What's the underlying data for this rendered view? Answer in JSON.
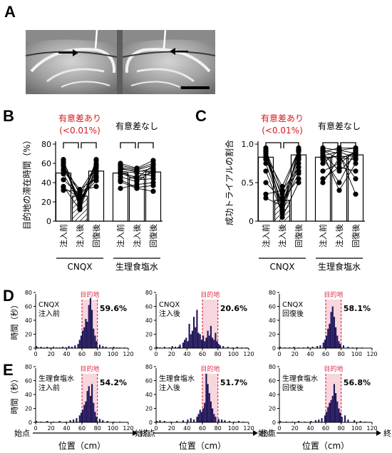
{
  "panel_letters": {
    "a": "A",
    "b": "B",
    "c": "C",
    "d": "D",
    "e": "E"
  },
  "colors": {
    "significant": "#d7191c",
    "histogram": "#241a5c",
    "target_zone": "#f7d6de",
    "target_line": "#e0304a"
  },
  "chart_data": [
    {
      "panel": "B",
      "type": "bar",
      "ylabel": "目的地の滞在時間（%）",
      "ylim": [
        0,
        80
      ],
      "yticks": [
        0,
        20,
        40,
        60,
        80
      ],
      "categories": [
        "注入前",
        "注入後",
        "回復後",
        "注入前",
        "注入後",
        "回復後"
      ],
      "groups": [
        "CNQX",
        "生理食塩水"
      ],
      "values": [
        50,
        26,
        52,
        50,
        45,
        51
      ],
      "significance_labels": [
        "有意差あり",
        "(<0.01%)",
        "有意差なし"
      ],
      "individual_cnqx": [
        [
          64,
          14,
          63
        ],
        [
          63,
          17,
          60
        ],
        [
          61,
          28,
          55
        ],
        [
          60,
          15,
          64
        ],
        [
          58,
          22,
          52
        ],
        [
          57,
          21,
          50
        ],
        [
          54,
          33,
          45
        ],
        [
          52,
          31,
          58
        ],
        [
          49,
          19,
          47
        ],
        [
          43,
          27,
          46
        ],
        [
          36,
          12,
          57
        ],
        [
          35,
          24,
          42
        ],
        [
          32,
          31,
          36
        ]
      ],
      "individual_saline": [
        [
          60,
          55,
          63
        ],
        [
          58,
          54,
          60
        ],
        [
          56,
          53,
          58
        ],
        [
          55,
          51,
          55
        ],
        [
          54,
          52,
          52
        ],
        [
          52,
          50,
          47
        ],
        [
          51,
          45,
          58
        ],
        [
          50,
          43,
          44
        ],
        [
          49,
          46,
          50
        ],
        [
          46,
          41,
          53
        ],
        [
          43,
          35,
          37
        ],
        [
          41,
          34,
          31
        ],
        [
          34,
          38,
          40
        ]
      ]
    },
    {
      "panel": "C",
      "type": "bar",
      "ylabel": "成功トライアルの割合",
      "ylim": [
        0,
        1.0
      ],
      "yticks": [
        "0",
        "0.5",
        "1.0"
      ],
      "categories": [
        "注入前",
        "注入後",
        "回復後",
        "注入前",
        "注入後",
        "回復後"
      ],
      "groups": [
        "CNQX",
        "生理食塩水"
      ],
      "values": [
        0.83,
        0.27,
        0.86,
        0.83,
        0.84,
        0.86
      ],
      "significance_labels": [
        "有意差あり",
        "(<0.01%)",
        "有意差なし"
      ],
      "individual_cnqx": [
        [
          0.95,
          0.12,
          0.95
        ],
        [
          0.92,
          0.38,
          0.92
        ],
        [
          0.9,
          0.18,
          0.9
        ],
        [
          0.88,
          0.3,
          0.82
        ],
        [
          0.85,
          0.45,
          0.92
        ],
        [
          0.82,
          0.22,
          0.85
        ],
        [
          0.8,
          0.35,
          0.65
        ],
        [
          0.75,
          0.15,
          0.8
        ],
        [
          0.65,
          0.1,
          0.75
        ],
        [
          0.5,
          0.28,
          0.55
        ],
        [
          0.35,
          0.4,
          0.7
        ],
        [
          0.3,
          0.2,
          0.62
        ],
        [
          0.9,
          0.05,
          0.5
        ]
      ],
      "individual_saline": [
        [
          0.95,
          0.92,
          0.95
        ],
        [
          0.92,
          0.8,
          0.9
        ],
        [
          0.9,
          0.95,
          0.95
        ],
        [
          0.88,
          0.65,
          0.85
        ],
        [
          0.85,
          0.9,
          0.82
        ],
        [
          0.82,
          0.5,
          0.92
        ],
        [
          0.8,
          0.85,
          0.55
        ],
        [
          0.75,
          0.92,
          0.88
        ],
        [
          0.65,
          0.75,
          0.9
        ],
        [
          0.55,
          0.7,
          0.65
        ],
        [
          0.92,
          0.88,
          0.35
        ],
        [
          0.5,
          0.82,
          0.8
        ],
        [
          0.88,
          0.4,
          0.75
        ]
      ]
    },
    {
      "panel": "D-E",
      "type": "histogram",
      "ylabel": "時間（秒）",
      "ylim": [
        0,
        80
      ],
      "yticks": [
        0,
        20,
        40,
        60,
        80
      ],
      "xlim": [
        0,
        120
      ],
      "xticks": [
        0,
        20,
        40,
        60,
        80,
        100,
        120
      ],
      "target_label": "目的地",
      "target_range": [
        60,
        80
      ],
      "bin_width": 2,
      "plots": [
        {
          "name": [
            "CNQX",
            "注入前"
          ],
          "percent": "59.6%",
          "bins": [
            [
              0,
              3
            ],
            [
              2,
              1
            ],
            [
              6,
              2
            ],
            [
              10,
              1
            ],
            [
              14,
              2
            ],
            [
              18,
              1
            ],
            [
              22,
              2
            ],
            [
              26,
              1
            ],
            [
              30,
              1
            ],
            [
              34,
              2
            ],
            [
              38,
              1
            ],
            [
              42,
              3
            ],
            [
              46,
              2
            ],
            [
              50,
              4
            ],
            [
              54,
              6
            ],
            [
              56,
              12
            ],
            [
              58,
              18
            ],
            [
              60,
              25
            ],
            [
              62,
              30
            ],
            [
              64,
              42
            ],
            [
              66,
              38
            ],
            [
              68,
              62
            ],
            [
              70,
              72
            ],
            [
              72,
              55
            ],
            [
              74,
              28
            ],
            [
              76,
              18
            ],
            [
              78,
              10
            ],
            [
              82,
              5
            ],
            [
              86,
              3
            ],
            [
              90,
              2
            ],
            [
              96,
              1
            ],
            [
              100,
              2
            ],
            [
              104,
              1
            ],
            [
              108,
              1
            ],
            [
              114,
              1
            ]
          ]
        },
        {
          "name": [
            "CNQX",
            "注入後"
          ],
          "percent": "20.6%",
          "bins": [
            [
              0,
              2
            ],
            [
              4,
              1
            ],
            [
              10,
              2
            ],
            [
              16,
              1
            ],
            [
              20,
              3
            ],
            [
              24,
              2
            ],
            [
              28,
              2
            ],
            [
              30,
              5
            ],
            [
              34,
              8
            ],
            [
              36,
              12
            ],
            [
              38,
              15
            ],
            [
              40,
              10
            ],
            [
              42,
              35
            ],
            [
              44,
              20
            ],
            [
              46,
              25
            ],
            [
              48,
              45
            ],
            [
              50,
              30
            ],
            [
              52,
              55
            ],
            [
              54,
              22
            ],
            [
              56,
              20
            ],
            [
              58,
              12
            ],
            [
              60,
              18
            ],
            [
              62,
              10
            ],
            [
              64,
              15
            ],
            [
              66,
              25
            ],
            [
              68,
              18
            ],
            [
              70,
              32
            ],
            [
              72,
              15
            ],
            [
              74,
              12
            ],
            [
              76,
              22
            ],
            [
              78,
              10
            ],
            [
              80,
              6
            ],
            [
              82,
              4
            ],
            [
              86,
              3
            ],
            [
              92,
              2
            ],
            [
              98,
              1
            ],
            [
              104,
              2
            ],
            [
              110,
              1
            ],
            [
              116,
              1
            ]
          ]
        },
        {
          "name": [
            "CNQX",
            "回復後"
          ],
          "percent": "58.1%",
          "bins": [
            [
              0,
              2
            ],
            [
              6,
              1
            ],
            [
              12,
              1
            ],
            [
              18,
              2
            ],
            [
              24,
              1
            ],
            [
              30,
              1
            ],
            [
              36,
              2
            ],
            [
              42,
              2
            ],
            [
              48,
              3
            ],
            [
              52,
              4
            ],
            [
              56,
              8
            ],
            [
              58,
              12
            ],
            [
              60,
              18
            ],
            [
              62,
              28
            ],
            [
              64,
              35
            ],
            [
              66,
              52
            ],
            [
              68,
              60
            ],
            [
              70,
              45
            ],
            [
              72,
              30
            ],
            [
              74,
              18
            ],
            [
              76,
              10
            ],
            [
              78,
              6
            ],
            [
              82,
              4
            ],
            [
              88,
              2
            ],
            [
              94,
              1
            ],
            [
              100,
              1
            ],
            [
              106,
              1
            ]
          ]
        },
        {
          "name": [
            "生理食塩水",
            "注入前"
          ],
          "percent": "54.2%",
          "bins": [
            [
              0,
              2
            ],
            [
              6,
              1
            ],
            [
              14,
              2
            ],
            [
              22,
              1
            ],
            [
              30,
              2
            ],
            [
              38,
              1
            ],
            [
              44,
              3
            ],
            [
              48,
              4
            ],
            [
              52,
              6
            ],
            [
              56,
              10
            ],
            [
              58,
              14
            ],
            [
              60,
              18
            ],
            [
              62,
              25
            ],
            [
              64,
              30
            ],
            [
              66,
              45
            ],
            [
              68,
              52
            ],
            [
              70,
              38
            ],
            [
              72,
              55
            ],
            [
              74,
              28
            ],
            [
              76,
              15
            ],
            [
              78,
              8
            ],
            [
              82,
              5
            ],
            [
              86,
              3
            ],
            [
              92,
              2
            ],
            [
              100,
              1
            ],
            [
              108,
              1
            ]
          ]
        },
        {
          "name": [
            "生理食塩水",
            "注入後"
          ],
          "percent": "51.7%",
          "bins": [
            [
              0,
              2
            ],
            [
              4,
              3
            ],
            [
              10,
              2
            ],
            [
              18,
              1
            ],
            [
              26,
              2
            ],
            [
              34,
              3
            ],
            [
              40,
              4
            ],
            [
              44,
              6
            ],
            [
              48,
              4
            ],
            [
              52,
              8
            ],
            [
              54,
              12
            ],
            [
              56,
              18
            ],
            [
              58,
              15
            ],
            [
              60,
              20
            ],
            [
              62,
              28
            ],
            [
              64,
              70
            ],
            [
              66,
              55
            ],
            [
              68,
              42
            ],
            [
              70,
              30
            ],
            [
              72,
              20
            ],
            [
              74,
              12
            ],
            [
              76,
              8
            ],
            [
              80,
              5
            ],
            [
              84,
              4
            ],
            [
              88,
              3
            ],
            [
              94,
              2
            ],
            [
              100,
              1
            ],
            [
              106,
              2
            ],
            [
              112,
              1
            ]
          ]
        },
        {
          "name": [
            "生理食塩水",
            "回復後"
          ],
          "percent": "56.8%",
          "bins": [
            [
              0,
              2
            ],
            [
              8,
              1
            ],
            [
              16,
              1
            ],
            [
              24,
              2
            ],
            [
              32,
              1
            ],
            [
              40,
              2
            ],
            [
              46,
              3
            ],
            [
              50,
              4
            ],
            [
              54,
              6
            ],
            [
              58,
              10
            ],
            [
              60,
              15
            ],
            [
              62,
              22
            ],
            [
              64,
              28
            ],
            [
              66,
              32
            ],
            [
              68,
              38
            ],
            [
              70,
              55
            ],
            [
              72,
              42
            ],
            [
              74,
              30
            ],
            [
              76,
              20
            ],
            [
              78,
              14
            ],
            [
              80,
              8
            ],
            [
              84,
              10
            ],
            [
              88,
              4
            ],
            [
              96,
              3
            ],
            [
              104,
              2
            ],
            [
              110,
              1
            ]
          ]
        }
      ],
      "axis_arrow": {
        "start": "始点",
        "end": "終点",
        "xlabel": "位置（cm）"
      }
    }
  ]
}
